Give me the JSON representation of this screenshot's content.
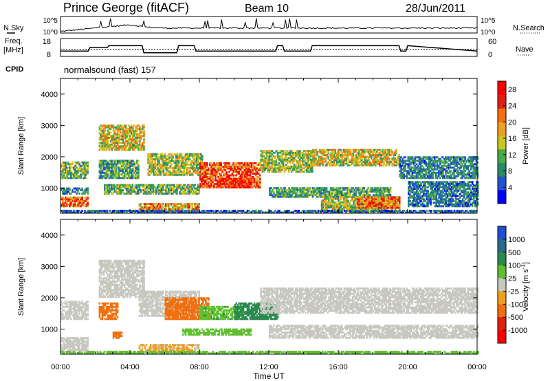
{
  "header": {
    "station": "Prince George (fitACF)",
    "beam": "Beam 10",
    "date": "28/Jun/2011"
  },
  "side_labels": {
    "nsky": "N.Sky",
    "nsearch": "N.Search",
    "freq_line1": "Freq.",
    "freq_line2": "[MHz]",
    "nave": "Nave",
    "cpid": "CPID",
    "cpid_value": "normalsound (fast) 157"
  },
  "chart_data": [
    {
      "type": "line",
      "name_panel": "noise",
      "yticks_left": [
        "10^5",
        "10^0"
      ],
      "yticks_right": [
        "10^5",
        "10^0"
      ],
      "series": [
        {
          "name": "N.Sky",
          "x": [
            0,
            1,
            2,
            2.3,
            3,
            4,
            5,
            6,
            7,
            8,
            9,
            10,
            11,
            12,
            13,
            14,
            15,
            16,
            17,
            18,
            19,
            20,
            21,
            22,
            23,
            24
          ],
          "y": [
            0.1,
            0.2,
            0.3,
            0.35,
            0.4,
            0.5,
            0.35,
            0.3,
            0.3,
            0.3,
            0.3,
            0.3,
            0.3,
            0.3,
            0.3,
            0.3,
            0.3,
            0.3,
            0.3,
            0.3,
            0.3,
            0.3,
            0.3,
            0.3,
            0.3,
            0.3
          ]
        }
      ]
    },
    {
      "type": "line",
      "name_panel": "frequency",
      "yticks_left": [
        "18",
        "8"
      ],
      "yticks_right": [
        "60",
        "0"
      ],
      "series": [
        {
          "name": "Freq.",
          "x": [
            0,
            1.6,
            1.7,
            2.7,
            2.8,
            4.7,
            4.8,
            6.7,
            6.8,
            7.7,
            7.8,
            12.4,
            12.5,
            12.8,
            12.9,
            14.4,
            14.5,
            19.5,
            19.6,
            19.9,
            20.0,
            24
          ],
          "y": [
            11,
            11,
            13,
            13,
            14,
            14,
            10,
            10,
            14,
            14,
            11,
            11,
            14,
            14,
            11,
            11,
            14,
            14,
            11,
            11,
            14,
            11
          ]
        },
        {
          "name": "Nave",
          "x": [
            0,
            24
          ],
          "y": [
            12,
            12
          ]
        }
      ]
    },
    {
      "type": "heatmap",
      "name_panel": "power",
      "xticks": [
        "00:00",
        "04:00",
        "08:00",
        "12:00",
        "16:00",
        "20:00",
        "00:00"
      ],
      "xlim": [
        0,
        24
      ],
      "ylabel": "Slant Range [km]",
      "ylim": [
        200,
        4500
      ],
      "yticks": [
        1000,
        2000,
        3000,
        4000
      ],
      "colorbar": {
        "label": "Power [dB]",
        "ticks": [
          4,
          8,
          12,
          16,
          20,
          24,
          28
        ],
        "range": [
          0,
          30
        ],
        "colors": [
          "#0000ff",
          "#2255cc",
          "#2a8a6a",
          "#4aaa4a",
          "#c8c820",
          "#f0a020",
          "#f07010",
          "#e02010",
          "#ff0000"
        ]
      },
      "bands": [
        {
          "t0": 0.0,
          "t1": 1.6,
          "r0": 1300,
          "r1": 1800,
          "v": 12
        },
        {
          "t0": 0.0,
          "t1": 1.6,
          "r0": 400,
          "r1": 700,
          "v": 22
        },
        {
          "t0": 0.0,
          "t1": 1.6,
          "r0": 800,
          "r1": 1000,
          "v": 8
        },
        {
          "t0": 2.2,
          "t1": 4.8,
          "r0": 2200,
          "r1": 3000,
          "v": 16
        },
        {
          "t0": 2.2,
          "t1": 4.5,
          "r0": 1300,
          "r1": 1900,
          "v": 10
        },
        {
          "t0": 2.5,
          "t1": 8.0,
          "r0": 800,
          "r1": 1100,
          "v": 12
        },
        {
          "t0": 4.5,
          "t1": 8.0,
          "r0": 250,
          "r1": 500,
          "v": 20
        },
        {
          "t0": 5.0,
          "t1": 8.2,
          "r0": 1400,
          "r1": 2100,
          "v": 14
        },
        {
          "t0": 8.0,
          "t1": 11.5,
          "r0": 1000,
          "r1": 1800,
          "v": 24
        },
        {
          "t0": 9.0,
          "t1": 11.0,
          "r0": 1000,
          "r1": 1300,
          "v": 28
        },
        {
          "t0": 11.5,
          "t1": 14.5,
          "r0": 1500,
          "r1": 2200,
          "v": 14
        },
        {
          "t0": 12.0,
          "t1": 19.0,
          "r0": 700,
          "r1": 1000,
          "v": 10
        },
        {
          "t0": 14.5,
          "t1": 19.5,
          "r0": 1700,
          "r1": 2200,
          "v": 16
        },
        {
          "t0": 15.0,
          "t1": 19.5,
          "r0": 250,
          "r1": 700,
          "v": 14
        },
        {
          "t0": 17.0,
          "t1": 19.5,
          "r0": 350,
          "r1": 700,
          "v": 22
        },
        {
          "t0": 19.5,
          "t1": 24.0,
          "r0": 1300,
          "r1": 2000,
          "v": 8
        },
        {
          "t0": 20.0,
          "t1": 24.0,
          "r0": 400,
          "r1": 1200,
          "v": 7
        },
        {
          "t0": 0.0,
          "t1": 24.0,
          "r0": 200,
          "r1": 300,
          "v": 6
        }
      ]
    },
    {
      "type": "heatmap",
      "name_panel": "velocity",
      "xticks": [
        "00:00",
        "04:00",
        "08:00",
        "12:00",
        "16:00",
        "20:00",
        "00:00"
      ],
      "xlabel": "Time UT",
      "xlim": [
        0,
        24
      ],
      "ylabel": "Slant Range [km]",
      "ylim": [
        200,
        4500
      ],
      "yticks": [
        1000,
        2000,
        3000,
        4000
      ],
      "colorbar": {
        "label": "Velocity [m s-1]",
        "label_main": "Velocity  [m s",
        "label_sup": "-1",
        "label_end": "]",
        "ticks": [
          1000,
          500,
          100,
          25,
          -25,
          -100,
          -500,
          -1000
        ],
        "colors": [
          "#2050d0",
          "#2a6a8a",
          "#2a8a50",
          "#60c030",
          "#c8c8c0",
          "#f0a020",
          "#f07010",
          "#e02010",
          "#ff0000"
        ]
      },
      "bands": [
        {
          "t0": 0.0,
          "t1": 1.6,
          "r0": 1300,
          "r1": 1900,
          "v": 0
        },
        {
          "t0": 0.0,
          "t1": 1.6,
          "r0": 250,
          "r1": 700,
          "v": 0
        },
        {
          "t0": 2.2,
          "t1": 4.8,
          "r0": 2000,
          "r1": 3200,
          "v": 0
        },
        {
          "t0": 2.2,
          "t1": 3.3,
          "r0": 1300,
          "r1": 1800,
          "v": -300
        },
        {
          "t0": 3.0,
          "t1": 3.5,
          "r0": 700,
          "r1": 900,
          "v": -400
        },
        {
          "t0": 4.5,
          "t1": 8.0,
          "r0": 1400,
          "r1": 2200,
          "v": 0
        },
        {
          "t0": 6.0,
          "t1": 8.5,
          "r0": 1300,
          "r1": 2000,
          "v": -200
        },
        {
          "t0": 8.0,
          "t1": 10.5,
          "r0": 1300,
          "r1": 1700,
          "v": 80
        },
        {
          "t0": 10.0,
          "t1": 12.5,
          "r0": 1300,
          "r1": 1800,
          "v": 150
        },
        {
          "t0": 7.0,
          "t1": 11.0,
          "r0": 800,
          "r1": 1000,
          "v": 60
        },
        {
          "t0": 11.5,
          "t1": 24.0,
          "r0": 1500,
          "r1": 2300,
          "v": 0
        },
        {
          "t0": 12.0,
          "t1": 24.0,
          "r0": 700,
          "r1": 1100,
          "v": 0
        },
        {
          "t0": 4.5,
          "t1": 8.0,
          "r0": 250,
          "r1": 500,
          "v": -30
        },
        {
          "t0": 0.0,
          "t1": 24.0,
          "r0": 200,
          "r1": 300,
          "v": 50
        }
      ]
    }
  ]
}
